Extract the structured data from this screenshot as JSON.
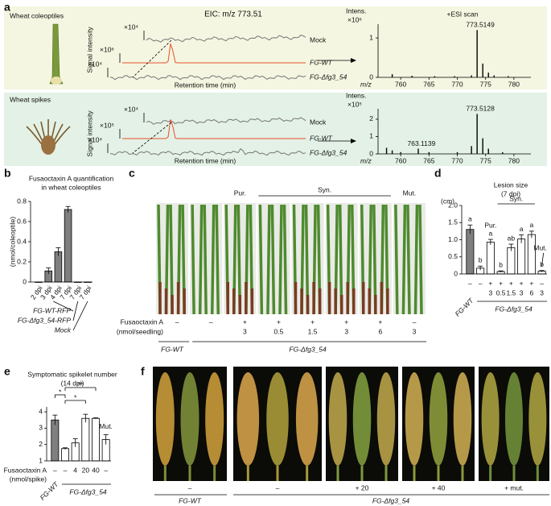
{
  "panel_labels": {
    "a": "a",
    "b": "b",
    "c": "c",
    "d": "d",
    "e": "e",
    "f": "f"
  },
  "panel_a": {
    "eic_title": "EIC: m/z 773.51",
    "y_label": "Signal intensity",
    "x_label": "Retention time (min)",
    "rows": [
      {
        "tissue": "Wheat coleoptiles",
        "traces": [
          {
            "name": "Mock",
            "scale": "×10⁴"
          },
          {
            "name": "FG-WT",
            "scale": "×10⁶"
          },
          {
            "name": "FG-Δfg3_54",
            "scale": "×10⁴"
          }
        ]
      },
      {
        "tissue": "Wheat spikes",
        "traces": [
          {
            "name": "Mock",
            "scale": "×10⁴"
          },
          {
            "name": "FG-WT",
            "scale": "×10⁵"
          },
          {
            "name": "FG-Δfg3_54",
            "scale": "×10⁴"
          }
        ]
      }
    ]
  },
  "chart_data": [
    {
      "type": "stem",
      "y_label": "Intens.",
      "y_scale": "×10⁶",
      "mode": "+ESI scan",
      "x_label": "m/z",
      "peak_labels": [
        "773.5149"
      ],
      "x": [
        758.5,
        762,
        766,
        769.5,
        772.5,
        773.5,
        774.5,
        775.5,
        776.5,
        779
      ],
      "values": [
        0.08,
        0.04,
        0.03,
        0.03,
        0.05,
        1.2,
        0.35,
        0.12,
        0.05,
        0.03
      ],
      "xlim": [
        756,
        783
      ],
      "xticks": [
        760,
        765,
        770,
        775,
        780
      ],
      "ylim": [
        0,
        1.35
      ],
      "yticks": [
        0,
        1
      ],
      "color": "#000000"
    },
    {
      "type": "stem",
      "y_label": "Intens.",
      "y_scale": "×10⁵",
      "x_label": "m/z",
      "peak_labels": [
        "773.5128",
        "763.1139"
      ],
      "x": [
        757.5,
        758.5,
        760,
        763.1,
        765,
        770,
        772.5,
        773.5,
        774.5,
        775.5,
        778
      ],
      "values": [
        0.35,
        0.2,
        0.1,
        0.3,
        0.1,
        0.1,
        0.45,
        2.3,
        0.9,
        0.3,
        0.1
      ],
      "xlim": [
        756,
        783
      ],
      "xticks": [
        760,
        765,
        770,
        775,
        780
      ],
      "ylim": [
        0,
        2.6
      ],
      "yticks": [
        0,
        1,
        2
      ],
      "color": "#000000"
    },
    {
      "type": "bar",
      "title": [
        "Fusaoctaxin A quantification",
        "in wheat coleoptiles"
      ],
      "y_label": "(nmol/coleoptile)",
      "categories": [
        "2 dpi",
        "3 dpi",
        "4 dpi",
        "7 dpi",
        "7 dpi",
        "7 dpi"
      ],
      "values": [
        0,
        0.11,
        0.3,
        0.72,
        0,
        0
      ],
      "errors": [
        0,
        0.03,
        0.04,
        0.03,
        0,
        0
      ],
      "color": "#7f7f7f",
      "ylim": [
        0,
        0.8
      ],
      "yticks": [
        0,
        0.2,
        0.4,
        0.6,
        0.8
      ],
      "group_labels": [
        "FG-WT-RFP",
        "FG-Δfg3_54-RFP",
        "Mock"
      ]
    },
    {
      "type": "bar",
      "title": [
        "Lesion size",
        "(7 dpi)"
      ],
      "y_label": "(cm)",
      "values": [
        1.3,
        0.17,
        0.93,
        0.07,
        0.77,
        1.02,
        1.15,
        0.08
      ],
      "errors": [
        0.13,
        0.06,
        0.08,
        0.02,
        0.1,
        0.12,
        0.1,
        0.02
      ],
      "colors": [
        "#7f7f7f",
        "#ffffff",
        "#ffffff",
        "#ffffff",
        "#ffffff",
        "#ffffff",
        "#ffffff",
        "#ffffff"
      ],
      "letters": [
        "a",
        "b",
        "a",
        "b",
        "ab",
        "a",
        "a",
        "b"
      ],
      "treatments": [
        "Pur.",
        "Syn.",
        "Mut."
      ],
      "signs": [
        "–",
        "–",
        "+",
        "+",
        "+",
        "+",
        "+",
        "–"
      ],
      "amounts": [
        null,
        null,
        "3",
        "0.5",
        "1.5",
        "3",
        "6",
        "3"
      ],
      "groups": [
        "FG-WT",
        "FG-Δfg3_54"
      ],
      "ylim": [
        0,
        2
      ],
      "yticks": [
        0,
        0.5,
        {
          "value": 1,
          "label": "1.0"
        },
        1.5,
        {
          "value": 2,
          "label": "2.0"
        }
      ]
    },
    {
      "type": "bar",
      "title": [
        "Symptomatic spikelet number",
        "(14 dpi)"
      ],
      "values": [
        3.5,
        1.75,
        2.1,
        3.6,
        3.6,
        2.3
      ],
      "errors": [
        0.3,
        0.05,
        0.25,
        0.25,
        0.03,
        0.3
      ],
      "colors": [
        "#7f7f7f",
        "#ffffff",
        "#ffffff",
        "#ffffff",
        "#ffffff",
        "#ffffff"
      ],
      "significance": [
        "*",
        "**",
        "*"
      ],
      "mut_label": "Mut.",
      "row_label": [
        "Fusaoctaxin A",
        "(nmol/spike)"
      ],
      "treatments": [
        "–",
        "–",
        "4",
        "20",
        "40",
        "–"
      ],
      "groups": [
        "FG-WT",
        "FG-Δfg3_54"
      ],
      "ylim": [
        1,
        4.3
      ],
      "yticks": [
        1,
        2,
        3,
        4
      ]
    }
  ],
  "panel_c": {
    "headers": [
      "Pur.",
      "Syn.",
      "Mut."
    ],
    "row_label": [
      "Fusaoctaxin A",
      "(nmol/seedling)"
    ],
    "signs": [
      "–",
      "–",
      "+",
      "+",
      "+",
      "+",
      "+",
      "–"
    ],
    "amounts": [
      null,
      null,
      "3",
      "0.5",
      "1.5",
      "3",
      "6",
      "3"
    ],
    "groups": [
      "FG-WT",
      "FG-Δfg3_54"
    ]
  },
  "panel_f": {
    "treatments": [
      "–",
      "–",
      "+ 20",
      "+ 40",
      "+ mut."
    ],
    "groups": [
      "FG-WT",
      "FG-Δfg3_54"
    ]
  }
}
